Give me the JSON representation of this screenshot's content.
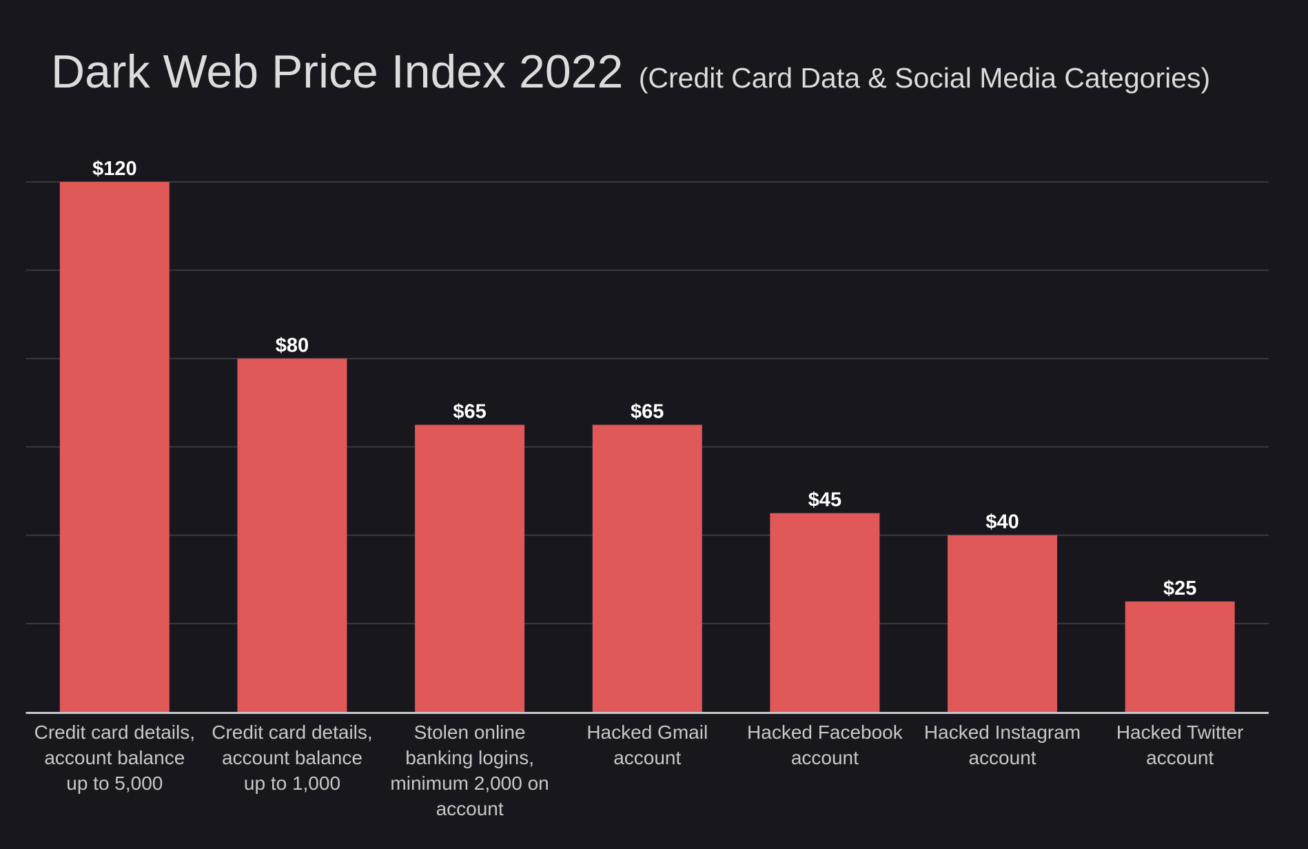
{
  "chart_data": {
    "type": "bar",
    "title": "Dark Web Price Index 2022",
    "subtitle": "(Credit Card Data & Social Media Categories)",
    "xlabel": "",
    "ylabel": "",
    "categories": [
      "Credit card details, account balance up to 5,000",
      "Credit card details, account balance up to 1,000",
      "Stolen online banking logins, minimum 2,000 on account",
      "Hacked Gmail account",
      "Hacked Facebook account",
      "Hacked Instagram account",
      "Hacked Twitter account"
    ],
    "category_lines": [
      [
        "Credit card details,",
        "account balance",
        "up to 5,000"
      ],
      [
        "Credit card details,",
        "account balance",
        "up to 1,000"
      ],
      [
        "Stolen online",
        "banking logins,",
        "minimum 2,000 on",
        "account"
      ],
      [
        "Hacked Gmail",
        "account"
      ],
      [
        "Hacked Facebook",
        "account"
      ],
      [
        "Hacked Instagram",
        "account"
      ],
      [
        "Hacked Twitter",
        "account"
      ]
    ],
    "values": [
      120,
      80,
      65,
      65,
      45,
      40,
      25
    ],
    "data_labels": [
      "$120",
      "$80",
      "$65",
      "$65",
      "$45",
      "$40",
      "$25"
    ],
    "ylim": [
      0,
      120
    ],
    "grid": true,
    "grid_step": 20,
    "y_tick_labels_shown": false,
    "colors": {
      "background": "#18171d",
      "bar": "#e05858",
      "grid": "#3a393f",
      "axis": "#c8c8c8",
      "title": "#dcdcdc"
    }
  }
}
